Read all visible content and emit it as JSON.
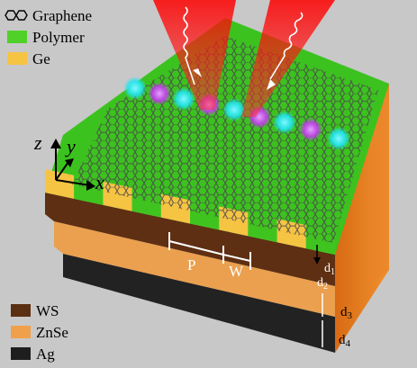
{
  "legend_top": {
    "items": [
      {
        "label": "Graphene",
        "swatch": "graphene-hexagon"
      },
      {
        "label": "Polymer",
        "color": "#4fd128"
      },
      {
        "label": "Ge",
        "color": "#f6c443"
      }
    ]
  },
  "legend_bottom": {
    "items": [
      {
        "label": "WS",
        "color": "#5b2f12"
      },
      {
        "label": "ZnSe",
        "color": "#f0a04a"
      },
      {
        "label": "Ag",
        "color": "#1e1e1e"
      }
    ]
  },
  "axes": {
    "x": "x",
    "y": "y",
    "z": "z"
  },
  "dimensions": {
    "P": "P",
    "W": "W",
    "d1": "d",
    "d1_sub": "1",
    "d2": "d",
    "d2_sub": "2",
    "d3": "d",
    "d3_sub": "3",
    "d4": "d",
    "d4_sub": "4"
  },
  "colors": {
    "background": "#c8c8c8",
    "laser": "#ff1a1a",
    "graphene": "#555555",
    "plasmon_cyan": "#1fe6f0",
    "plasmon_magenta": "#c43cf0",
    "ws_side": "#5b2f12",
    "znse_side": "#f0a04a",
    "ag_side": "#1e1e1e",
    "right_side": "#e2791e"
  }
}
